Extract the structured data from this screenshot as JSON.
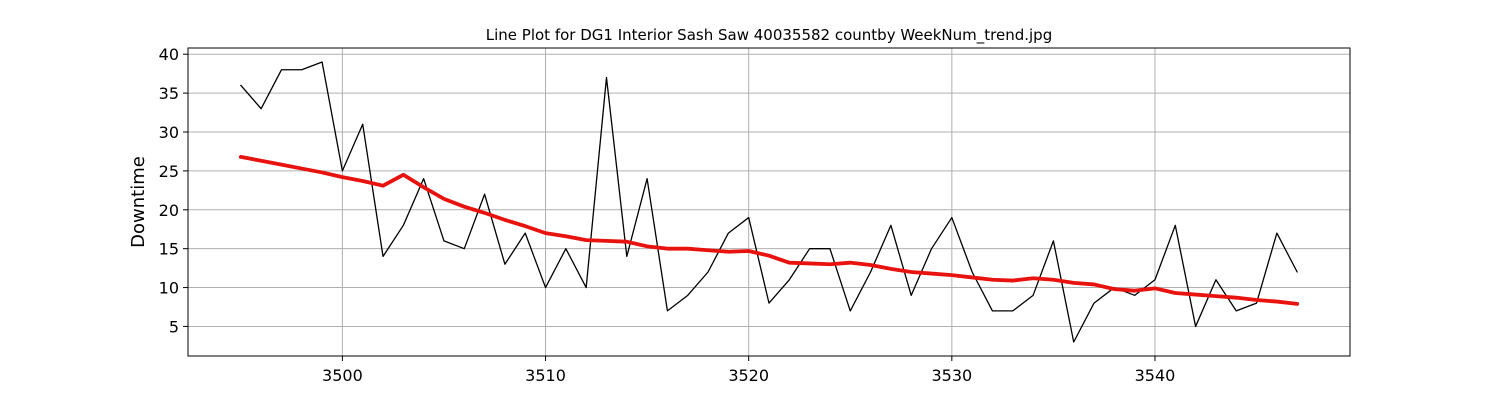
{
  "chart_data": {
    "type": "line",
    "title": "Line Plot for DG1 Interior Sash Saw 40035582 countby WeekNum_trend.jpg",
    "xlabel": "",
    "ylabel": "Downtime",
    "xlim": [
      3492.4,
      3549.6
    ],
    "ylim": [
      1.2,
      40.8
    ],
    "x_ticks": [
      3500,
      3510,
      3520,
      3530,
      3540
    ],
    "y_ticks": [
      5,
      10,
      15,
      20,
      25,
      30,
      35,
      40
    ],
    "grid": true,
    "x": [
      3495,
      3496,
      3497,
      3498,
      3499,
      3500,
      3501,
      3502,
      3503,
      3504,
      3505,
      3506,
      3507,
      3508,
      3509,
      3510,
      3511,
      3512,
      3513,
      3514,
      3515,
      3516,
      3517,
      3518,
      3519,
      3520,
      3521,
      3522,
      3523,
      3524,
      3525,
      3526,
      3527,
      3528,
      3529,
      3530,
      3531,
      3532,
      3533,
      3534,
      3535,
      3536,
      3537,
      3538,
      3539,
      3540,
      3541,
      3542,
      3543,
      3544,
      3545,
      3546,
      3547
    ],
    "series": [
      {
        "color": "#000000",
        "values": [
          36,
          33,
          38,
          38,
          39,
          25,
          31,
          14,
          18,
          24,
          16,
          15,
          22,
          13,
          17,
          10,
          15,
          10,
          37,
          14,
          24,
          7,
          9,
          12,
          17,
          19,
          8,
          11,
          15,
          15,
          7,
          12,
          18,
          9,
          15,
          19,
          12,
          7,
          7,
          9,
          16,
          3,
          8,
          10,
          9,
          11,
          18,
          5,
          11,
          7,
          8,
          17,
          12
        ]
      },
      {
        "color": "#e8130f",
        "values": [
          26.8,
          26.3,
          25.8,
          25.3,
          24.8,
          24.2,
          23.7,
          23.1,
          24.5,
          22.9,
          21.4,
          20.4,
          19.6,
          18.7,
          17.9,
          17.0,
          16.6,
          16.1,
          16.0,
          15.9,
          15.3,
          15.0,
          15.0,
          14.8,
          14.6,
          14.7,
          14.1,
          13.2,
          13.1,
          13.0,
          13.2,
          12.9,
          12.4,
          12.0,
          11.8,
          11.6,
          11.3,
          11.0,
          10.9,
          11.2,
          11.0,
          10.6,
          10.4,
          9.8,
          9.6,
          9.9,
          9.3,
          9.1,
          8.9,
          8.7,
          8.4,
          8.2,
          7.9
        ]
      }
    ]
  }
}
